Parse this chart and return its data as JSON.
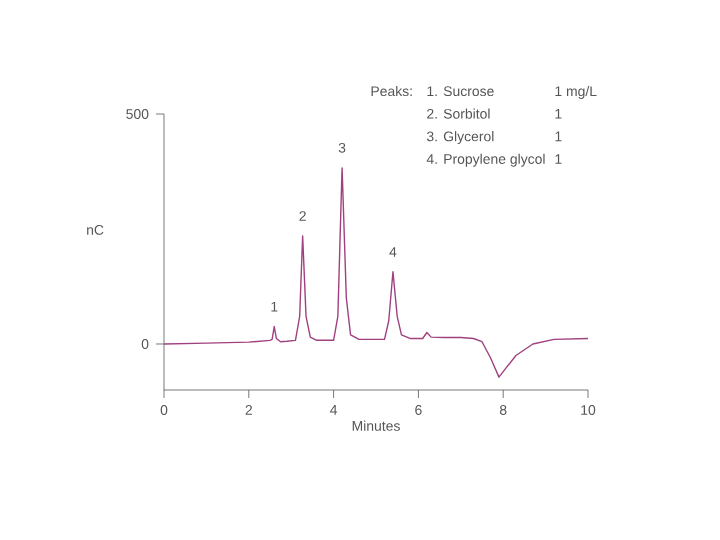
{
  "chart_data": {
    "type": "line",
    "xlabel": "Minutes",
    "ylabel": "nC",
    "x": [
      0,
      1,
      2,
      2.5,
      2.55,
      2.6,
      2.65,
      2.75,
      2.9,
      3.1,
      3.2,
      3.27,
      3.35,
      3.45,
      3.6,
      4.0,
      4.1,
      4.2,
      4.3,
      4.4,
      4.6,
      5.2,
      5.3,
      5.4,
      5.5,
      5.6,
      5.8,
      6.1,
      6.2,
      6.3,
      6.6,
      7.0,
      7.3,
      7.5,
      7.7,
      7.9,
      8.0,
      8.3,
      8.7,
      9.2,
      10
    ],
    "series": [
      {
        "color": "#a0407f",
        "values": [
          0,
          2,
          4,
          8,
          10,
          38,
          12,
          5,
          6,
          8,
          60,
          235,
          60,
          15,
          8,
          8,
          60,
          383,
          100,
          20,
          10,
          10,
          50,
          157,
          60,
          20,
          12,
          12,
          25,
          15,
          14,
          14,
          12,
          5,
          -30,
          -72,
          -60,
          -25,
          0,
          10,
          12
        ]
      }
    ],
    "xlim": [
      0,
      10
    ],
    "ylim": [
      -100,
      500
    ],
    "xticks": [
      0,
      2,
      4,
      6,
      8,
      10
    ],
    "yticks": [
      0,
      500
    ],
    "grid": false,
    "marker": "none",
    "line_style": "solid",
    "annotations": [
      {
        "text": "1",
        "x": 2.6,
        "y": 38
      },
      {
        "text": "2",
        "x": 3.27,
        "y": 235
      },
      {
        "text": "3",
        "x": 4.2,
        "y": 383
      },
      {
        "text": "4",
        "x": 5.4,
        "y": 157
      },
      "Peaks:",
      "1. Sucrose",
      "1 mg/L",
      "2. Sorbitol",
      "1",
      "3. Glycerol",
      "1",
      "4. Propylene glycol",
      "1"
    ]
  }
}
